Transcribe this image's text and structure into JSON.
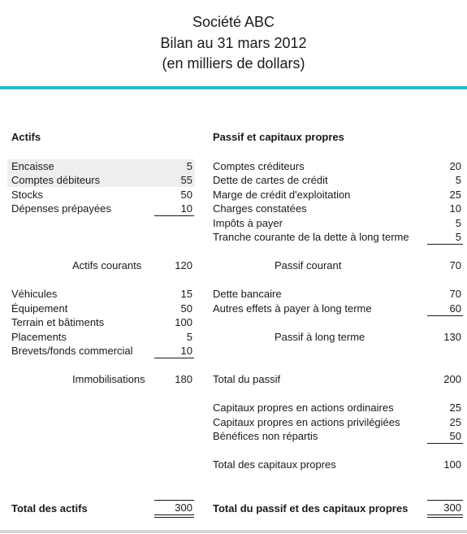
{
  "header": {
    "line1": "Société ABC",
    "line2": "Bilan au 31 mars 2012",
    "line3": "(en milliers de dollars)"
  },
  "assets": {
    "heading": "Actifs",
    "current_items": [
      {
        "label": "Encaisse",
        "value": "5"
      },
      {
        "label": "Comptes débiteurs",
        "value": "55"
      },
      {
        "label": "Stocks",
        "value": "50"
      },
      {
        "label": "Dépenses prépayées",
        "value": "10"
      }
    ],
    "current_total": {
      "label": "Actifs courants",
      "value": "120"
    },
    "fixed_items": [
      {
        "label": "Véhicules",
        "value": "15"
      },
      {
        "label": "Équipement",
        "value": "50"
      },
      {
        "label": "Terrain et bâtiments",
        "value": "100"
      },
      {
        "label": "Placements",
        "value": "5"
      },
      {
        "label": "Brevets/fonds commercial",
        "value": "10"
      }
    ],
    "fixed_total": {
      "label": "Immobilisations",
      "value": "180"
    },
    "grand_total": {
      "label": "Total des actifs",
      "value": "300"
    }
  },
  "liabilities": {
    "heading": "Passif et capitaux propres",
    "current_items": [
      {
        "label": "Comptes créditeurs",
        "value": "20"
      },
      {
        "label": "Dette de cartes de crédit",
        "value": "5"
      },
      {
        "label": "Marge de crédit d'exploitation",
        "value": "25"
      },
      {
        "label": "Charges constatées",
        "value": "10"
      },
      {
        "label": "Impôts à payer",
        "value": "5"
      },
      {
        "label": "Tranche courante de la dette à long terme",
        "value": "5"
      }
    ],
    "current_total": {
      "label": "Passif courant",
      "value": "70"
    },
    "long_term_items": [
      {
        "label": "Dette bancaire",
        "value": "70"
      },
      {
        "label": "Autres effets à payer à long terme",
        "value": "60"
      }
    ],
    "long_term_total": {
      "label": "Passif à long terme",
      "value": "130"
    },
    "total_liabilities": {
      "label": "Total du passif",
      "value": "200"
    },
    "equity_items": [
      {
        "label": "Capitaux propres en actions ordinaires",
        "value": "25"
      },
      {
        "label": "Capitaux propres en actions privilégiées",
        "value": "25"
      },
      {
        "label": "Bénéfices non répartis",
        "value": "50"
      }
    ],
    "equity_total": {
      "label": "Total des capitaux propres",
      "value": "100"
    },
    "grand_total": {
      "label": "Total du passif et des capitaux propres",
      "value": "300"
    }
  }
}
